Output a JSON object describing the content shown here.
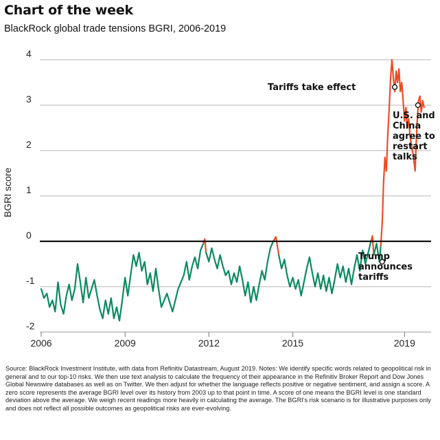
{
  "header": {
    "title": "Chart of the week",
    "subtitle": "BlackRock global trade tensions BGRI, 2006-2019"
  },
  "colors": {
    "base_line": "#0a8a5f",
    "high_line": "#ef4b22",
    "grid": "#b5b5b5",
    "zero_line": "#111111"
  },
  "chart_data": {
    "type": "line",
    "title": "BlackRock global trade tensions BGRI, 2006-2019",
    "xlabel": "",
    "ylabel": "BGRI score",
    "xlim": [
      2005.95,
      2019.95
    ],
    "ylim": [
      -2,
      4
    ],
    "x_ticks": [
      2006,
      2009,
      2012,
      2015,
      2019
    ],
    "y_ticks": [
      4,
      3,
      2,
      1,
      0,
      -1,
      -2
    ],
    "grid": "horizontal",
    "series": [
      {
        "points": [
          [
            2006.0,
            -1.05
          ],
          [
            2006.1,
            -1.25
          ],
          [
            2006.2,
            -1.15
          ],
          [
            2006.3,
            -1.45
          ],
          [
            2006.4,
            -1.3
          ],
          [
            2006.5,
            -1.55
          ],
          [
            2006.6,
            -0.9
          ],
          [
            2006.7,
            -1.4
          ],
          [
            2006.8,
            -1.6
          ],
          [
            2006.9,
            -1.2
          ],
          [
            2007.0,
            -0.95
          ],
          [
            2007.1,
            -1.3
          ],
          [
            2007.2,
            -1.05
          ],
          [
            2007.3,
            -0.5
          ],
          [
            2007.4,
            -0.9
          ],
          [
            2007.5,
            -1.35
          ],
          [
            2007.6,
            -0.8
          ],
          [
            2007.7,
            -1.25
          ],
          [
            2007.8,
            -1.05
          ],
          [
            2007.9,
            -0.85
          ],
          [
            2008.0,
            -1.2
          ],
          [
            2008.1,
            -1.5
          ],
          [
            2008.2,
            -1.7
          ],
          [
            2008.3,
            -1.3
          ],
          [
            2008.4,
            -1.6
          ],
          [
            2008.5,
            -1.25
          ],
          [
            2008.6,
            -1.7
          ],
          [
            2008.7,
            -1.45
          ],
          [
            2008.8,
            -1.75
          ],
          [
            2008.9,
            -1.3
          ],
          [
            2009.0,
            -0.8
          ],
          [
            2009.1,
            -1.2
          ],
          [
            2009.2,
            -0.75
          ],
          [
            2009.3,
            -0.3
          ],
          [
            2009.4,
            -0.55
          ],
          [
            2009.5,
            -0.25
          ],
          [
            2009.6,
            -0.65
          ],
          [
            2009.7,
            -0.45
          ],
          [
            2009.8,
            -0.95
          ],
          [
            2009.9,
            -0.7
          ],
          [
            2010.0,
            -1.1
          ],
          [
            2010.1,
            -0.6
          ],
          [
            2010.2,
            -1.05
          ],
          [
            2010.3,
            -1.45
          ],
          [
            2010.5,
            -1.15
          ],
          [
            2010.7,
            -1.55
          ],
          [
            2010.9,
            -1.05
          ],
          [
            2011.1,
            -0.75
          ],
          [
            2011.2,
            -0.45
          ],
          [
            2011.3,
            -0.85
          ],
          [
            2011.4,
            -0.55
          ],
          [
            2011.5,
            -0.35
          ],
          [
            2011.6,
            -0.6
          ],
          [
            2011.7,
            -0.2
          ],
          [
            2011.8,
            -0.05
          ],
          [
            2011.85,
            0.05
          ],
          [
            2011.9,
            -0.25
          ],
          [
            2012.0,
            -0.45
          ],
          [
            2012.1,
            -0.15
          ],
          [
            2012.2,
            -0.4
          ],
          [
            2012.3,
            -0.6
          ],
          [
            2012.4,
            -0.3
          ],
          [
            2012.5,
            -0.55
          ],
          [
            2012.6,
            -0.75
          ],
          [
            2012.7,
            -0.65
          ],
          [
            2012.8,
            -0.95
          ],
          [
            2012.9,
            -0.7
          ],
          [
            2013.0,
            -0.9
          ],
          [
            2013.1,
            -0.55
          ],
          [
            2013.2,
            -0.85
          ],
          [
            2013.3,
            -1.2
          ],
          [
            2013.4,
            -0.9
          ],
          [
            2013.5,
            -1.35
          ],
          [
            2013.6,
            -1.0
          ],
          [
            2013.7,
            -1.3
          ],
          [
            2013.8,
            -0.95
          ],
          [
            2013.9,
            -0.65
          ],
          [
            2014.0,
            -0.85
          ],
          [
            2014.1,
            -0.45
          ],
          [
            2014.2,
            -0.15
          ],
          [
            2014.3,
            0.0
          ],
          [
            2014.4,
            0.1
          ],
          [
            2014.5,
            -0.3
          ],
          [
            2014.6,
            -0.6
          ],
          [
            2014.7,
            -0.4
          ],
          [
            2014.8,
            -0.75
          ],
          [
            2014.9,
            -1.0
          ],
          [
            2015.0,
            -0.8
          ],
          [
            2015.1,
            -1.05
          ],
          [
            2015.2,
            -0.85
          ],
          [
            2015.3,
            -1.2
          ],
          [
            2015.4,
            -0.9
          ],
          [
            2015.5,
            -0.6
          ],
          [
            2015.6,
            -0.35
          ],
          [
            2015.7,
            -0.7
          ],
          [
            2015.8,
            -1.0
          ],
          [
            2015.9,
            -0.7
          ],
          [
            2016.0,
            -1.05
          ],
          [
            2016.1,
            -0.75
          ],
          [
            2016.2,
            -1.1
          ],
          [
            2016.3,
            -0.8
          ],
          [
            2016.4,
            -1.15
          ],
          [
            2016.5,
            -0.85
          ],
          [
            2016.6,
            -0.5
          ],
          [
            2016.7,
            -0.8
          ],
          [
            2016.8,
            -0.55
          ],
          [
            2016.9,
            -0.9
          ],
          [
            2017.0,
            -0.6
          ],
          [
            2017.1,
            -0.95
          ],
          [
            2017.2,
            -0.6
          ],
          [
            2017.3,
            -0.3
          ],
          [
            2017.4,
            -0.65
          ],
          [
            2017.5,
            -0.2
          ],
          [
            2017.6,
            -0.5
          ],
          [
            2017.7,
            -0.25
          ],
          [
            2017.8,
            0.0
          ],
          [
            2017.85,
            0.12
          ],
          [
            2017.9,
            -0.3
          ],
          [
            2018.0,
            -0.05
          ],
          [
            2018.1,
            -0.45
          ],
          [
            2018.15,
            -0.1
          ],
          [
            2018.2,
            0.4
          ],
          [
            2018.25,
            1.3
          ],
          [
            2018.3,
            1.85
          ],
          [
            2018.35,
            1.55
          ],
          [
            2018.4,
            2.35
          ],
          [
            2018.45,
            2.9
          ],
          [
            2018.5,
            3.6
          ],
          [
            2018.55,
            4.0
          ],
          [
            2018.6,
            3.6
          ],
          [
            2018.65,
            3.3
          ],
          [
            2018.7,
            3.75
          ],
          [
            2018.75,
            3.5
          ],
          [
            2018.8,
            3.8
          ],
          [
            2018.85,
            3.3
          ],
          [
            2018.9,
            3.5
          ],
          [
            2018.95,
            3.1
          ],
          [
            2019.0,
            2.65
          ],
          [
            2019.05,
            2.95
          ],
          [
            2019.1,
            2.5
          ],
          [
            2019.15,
            2.7
          ],
          [
            2019.2,
            2.3
          ],
          [
            2019.25,
            2.1
          ],
          [
            2019.3,
            1.95
          ],
          [
            2019.35,
            1.7
          ],
          [
            2019.38,
            1.55
          ],
          [
            2019.4,
            1.9
          ],
          [
            2019.45,
            2.6
          ],
          [
            2019.5,
            3.1
          ],
          [
            2019.55,
            3.2
          ],
          [
            2019.6,
            2.85
          ],
          [
            2019.65,
            3.1
          ],
          [
            2019.7,
            2.95
          ]
        ]
      }
    ],
    "annotations": [
      {
        "label": "Tariffs take effect",
        "x": 2018.65,
        "y": 3.4
      },
      {
        "label": "U.S. and\nChina\nagree to\nrestart\ntalks",
        "x": 2019.48,
        "y": 3.0
      },
      {
        "label": "Trump\nannounces\ntariffs",
        "x": 2018.2,
        "y": -0.45
      }
    ]
  },
  "footer": {
    "source": "Source: BlackRock Investment Institute, with data from Refinitiv Datastream, August 2019. Notes: We identify specific words related to geopolitical risk in general and to our top-10 risks. We then use text analysis to calculate the frequency of their appearance in the Refinitiv Broker Report and Dow Jones Global Newswire databases as well as on Twitter. We then adjust for whether the language reflects positive or negative sentiment, and assign a score. A zero score represents the average BGRI level over its history from 2003 up to that point in time. A score of one means the BGRI level is one standard deviation above the average. We weigh recent readings more heavily in calculating the average. The BGRI's risk scenario is for illustrative purposes only and does not reflect all possible outcomes as geopolitical risks are ever-evolving."
  }
}
